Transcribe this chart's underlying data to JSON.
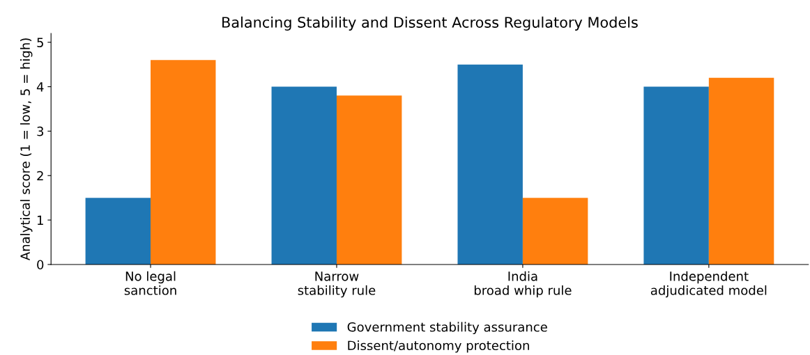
{
  "chart_data": {
    "type": "bar",
    "title": "Balancing Stability and Dissent Across Regulatory Models",
    "ylabel": "Analytical score (1 = low, 5 = high)",
    "categories": [
      "No legal\nsanction",
      "Narrow\nstability rule",
      "India\nbroad whip rule",
      "Independent\nadjudicated model"
    ],
    "series": [
      {
        "name": "Government stability assurance",
        "color": "#1f77b4",
        "values": [
          1.5,
          4.0,
          4.5,
          4.0
        ]
      },
      {
        "name": "Dissent/autonomy protection",
        "color": "#ff7f0e",
        "values": [
          4.6,
          3.8,
          1.5,
          4.2
        ]
      }
    ],
    "ylim": [
      0,
      5.2
    ],
    "yticks": [
      0,
      1,
      2,
      3,
      4,
      5
    ],
    "grid": false,
    "legend": "bottom"
  }
}
